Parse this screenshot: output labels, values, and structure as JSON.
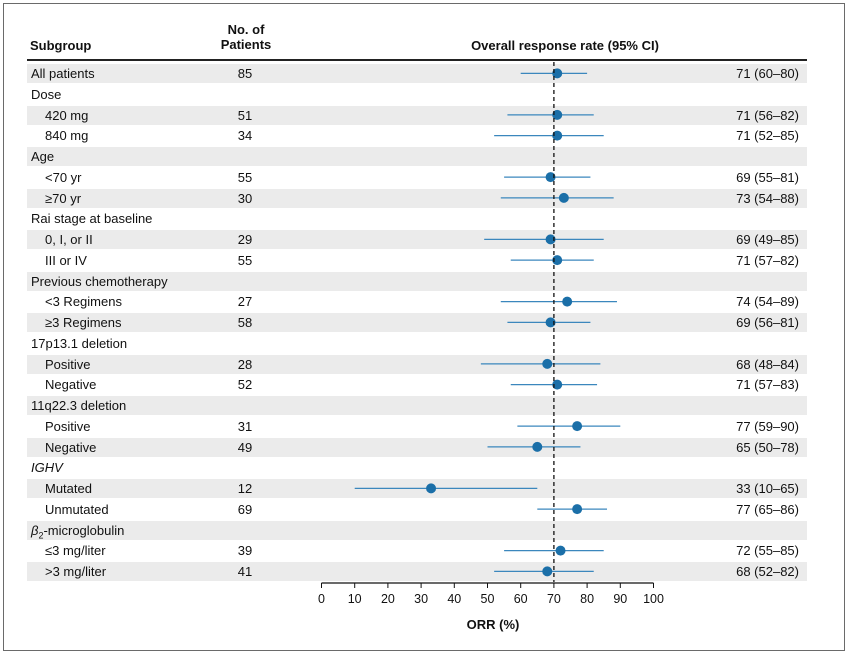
{
  "headers": {
    "subgroup": "Subgroup",
    "no_patients_line1": "No. of",
    "no_patients_line2": "Patients",
    "orr": "Overall response rate (95% CI)"
  },
  "colors": {
    "marker": "#1b6fa8",
    "ci_line": "#3b87bd",
    "shade": "#ebebeb"
  },
  "chart_data": {
    "type": "scatter",
    "title": "",
    "xlabel": "ORR (%)",
    "ylabel": "",
    "xlim": [
      0,
      100
    ],
    "xticks": [
      0,
      10,
      20,
      30,
      40,
      50,
      60,
      70,
      80,
      90,
      100
    ],
    "reference_line": 70,
    "rows": [
      {
        "label": "All patients",
        "indent": false,
        "n": "85",
        "orr": 71,
        "lo": 60,
        "hi": 80,
        "ci_text": "71 (60–80)",
        "shade": true
      },
      {
        "label": "Dose",
        "indent": false,
        "header": true,
        "shade": false
      },
      {
        "label": "420 mg",
        "indent": true,
        "n": "51",
        "orr": 71,
        "lo": 56,
        "hi": 82,
        "ci_text": "71 (56–82)",
        "shade": true
      },
      {
        "label": "840 mg",
        "indent": true,
        "n": "34",
        "orr": 71,
        "lo": 52,
        "hi": 85,
        "ci_text": "71 (52–85)",
        "shade": false
      },
      {
        "label": "Age",
        "indent": false,
        "header": true,
        "shade": true
      },
      {
        "label": "<70 yr",
        "indent": true,
        "n": "55",
        "orr": 69,
        "lo": 55,
        "hi": 81,
        "ci_text": "69 (55–81)",
        "shade": false
      },
      {
        "label": "≥70 yr",
        "indent": true,
        "n": "30",
        "orr": 73,
        "lo": 54,
        "hi": 88,
        "ci_text": "73 (54–88)",
        "shade": true
      },
      {
        "label": "Rai stage at baseline",
        "indent": false,
        "header": true,
        "shade": false
      },
      {
        "label": "0, I, or II",
        "indent": true,
        "n": "29",
        "orr": 69,
        "lo": 49,
        "hi": 85,
        "ci_text": "69 (49–85)",
        "shade": true
      },
      {
        "label": "III or IV",
        "indent": true,
        "n": "55",
        "orr": 71,
        "lo": 57,
        "hi": 82,
        "ci_text": "71 (57–82)",
        "shade": false
      },
      {
        "label": "Previous chemotherapy",
        "indent": false,
        "header": true,
        "shade": true
      },
      {
        "label": "<3 Regimens",
        "indent": true,
        "n": "27",
        "orr": 74,
        "lo": 54,
        "hi": 89,
        "ci_text": "74 (54–89)",
        "shade": false
      },
      {
        "label": "≥3 Regimens",
        "indent": true,
        "n": "58",
        "orr": 69,
        "lo": 56,
        "hi": 81,
        "ci_text": "69 (56–81)",
        "shade": true
      },
      {
        "label": "17p13.1 deletion",
        "indent": false,
        "header": true,
        "shade": false
      },
      {
        "label": "Positive",
        "indent": true,
        "n": "28",
        "orr": 68,
        "lo": 48,
        "hi": 84,
        "ci_text": "68 (48–84)",
        "shade": true
      },
      {
        "label": "Negative",
        "indent": true,
        "n": "52",
        "orr": 71,
        "lo": 57,
        "hi": 83,
        "ci_text": "71 (57–83)",
        "shade": false
      },
      {
        "label": "11q22.3 deletion",
        "indent": false,
        "header": true,
        "shade": true
      },
      {
        "label": "Positive",
        "indent": true,
        "n": "31",
        "orr": 77,
        "lo": 59,
        "hi": 90,
        "ci_text": "77 (59–90)",
        "shade": false
      },
      {
        "label": "Negative",
        "indent": true,
        "n": "49",
        "orr": 65,
        "lo": 50,
        "hi": 78,
        "ci_text": "65 (50–78)",
        "shade": true
      },
      {
        "label": "IGHV",
        "indent": false,
        "header": true,
        "italic": true,
        "shade": false
      },
      {
        "label": "Mutated",
        "indent": true,
        "n": "12",
        "orr": 33,
        "lo": 10,
        "hi": 65,
        "ci_text": "33 (10–65)",
        "shade": true
      },
      {
        "label": "Unmutated",
        "indent": true,
        "n": "69",
        "orr": 77,
        "lo": 65,
        "hi": 86,
        "ci_text": "77 (65–86)",
        "shade": false
      },
      {
        "label": "β2-microglobulin",
        "indent": false,
        "header": true,
        "beta": true,
        "shade": true
      },
      {
        "label": "≤3 mg/liter",
        "indent": true,
        "n": "39",
        "orr": 72,
        "lo": 55,
        "hi": 85,
        "ci_text": "72 (55–85)",
        "shade": false
      },
      {
        "label": ">3 mg/liter",
        "indent": true,
        "n": "41",
        "orr": 68,
        "lo": 52,
        "hi": 82,
        "ci_text": "68 (52–82)",
        "shade": true
      }
    ]
  }
}
